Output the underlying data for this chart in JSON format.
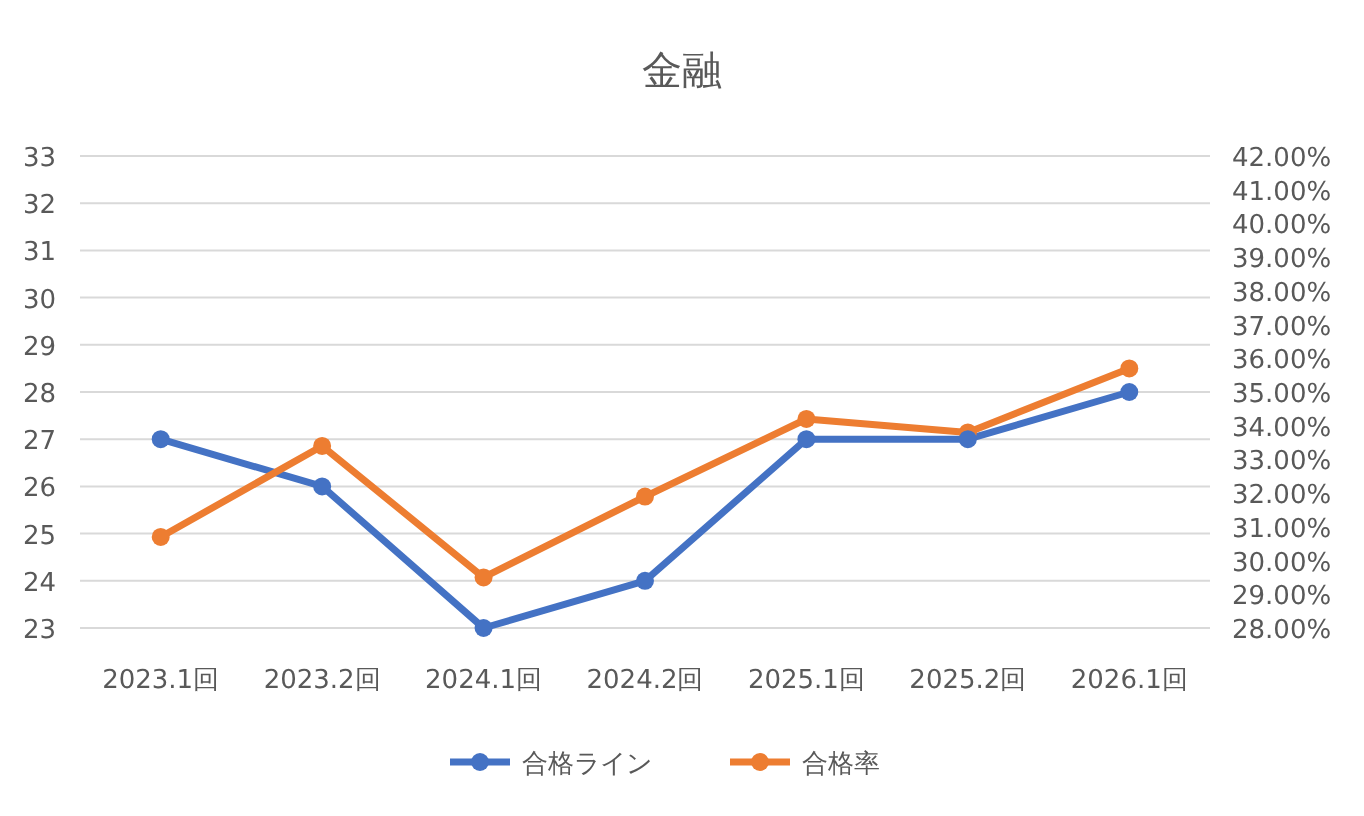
{
  "chart_data": {
    "type": "line",
    "title": "金融",
    "categories": [
      "2023.1回",
      "2023.2回",
      "2024.1回",
      "2024.2回",
      "2025.1回",
      "2025.2回",
      "2026.1回"
    ],
    "series": [
      {
        "name": "合格ライン",
        "color": "#4472c4",
        "values": [
          27,
          26,
          23,
          24,
          27,
          27,
          28
        ]
      },
      {
        "name": "合格率",
        "color": "#ed7d31",
        "axis": "y2",
        "values": [
          30.7,
          33.4,
          29.5,
          31.9,
          34.2,
          33.8,
          35.7
        ]
      }
    ],
    "ylim": [
      23,
      33
    ],
    "yticks": [
      23,
      24,
      25,
      26,
      27,
      28,
      29,
      30,
      31,
      32,
      33
    ],
    "y2lim": [
      28,
      42
    ],
    "y2ticks": [
      {
        "value": 28,
        "label": "28.00%"
      },
      {
        "value": 29,
        "label": "29.00%"
      },
      {
        "value": 30,
        "label": "30.00%"
      },
      {
        "value": 31,
        "label": "31.00%"
      },
      {
        "value": 32,
        "label": "32.00%"
      },
      {
        "value": 33,
        "label": "33.00%"
      },
      {
        "value": 34,
        "label": "34.00%"
      },
      {
        "value": 35,
        "label": "35.00%"
      },
      {
        "value": 36,
        "label": "36.00%"
      },
      {
        "value": 37,
        "label": "37.00%"
      },
      {
        "value": 38,
        "label": "38.00%"
      },
      {
        "value": 39,
        "label": "39.00%"
      },
      {
        "value": 40,
        "label": "40.00%"
      },
      {
        "value": 41,
        "label": "41.00%"
      },
      {
        "value": 42,
        "label": "42.00%"
      }
    ],
    "grid": "y",
    "legend": "bottom",
    "marker": "circle",
    "line_style": "solid"
  }
}
